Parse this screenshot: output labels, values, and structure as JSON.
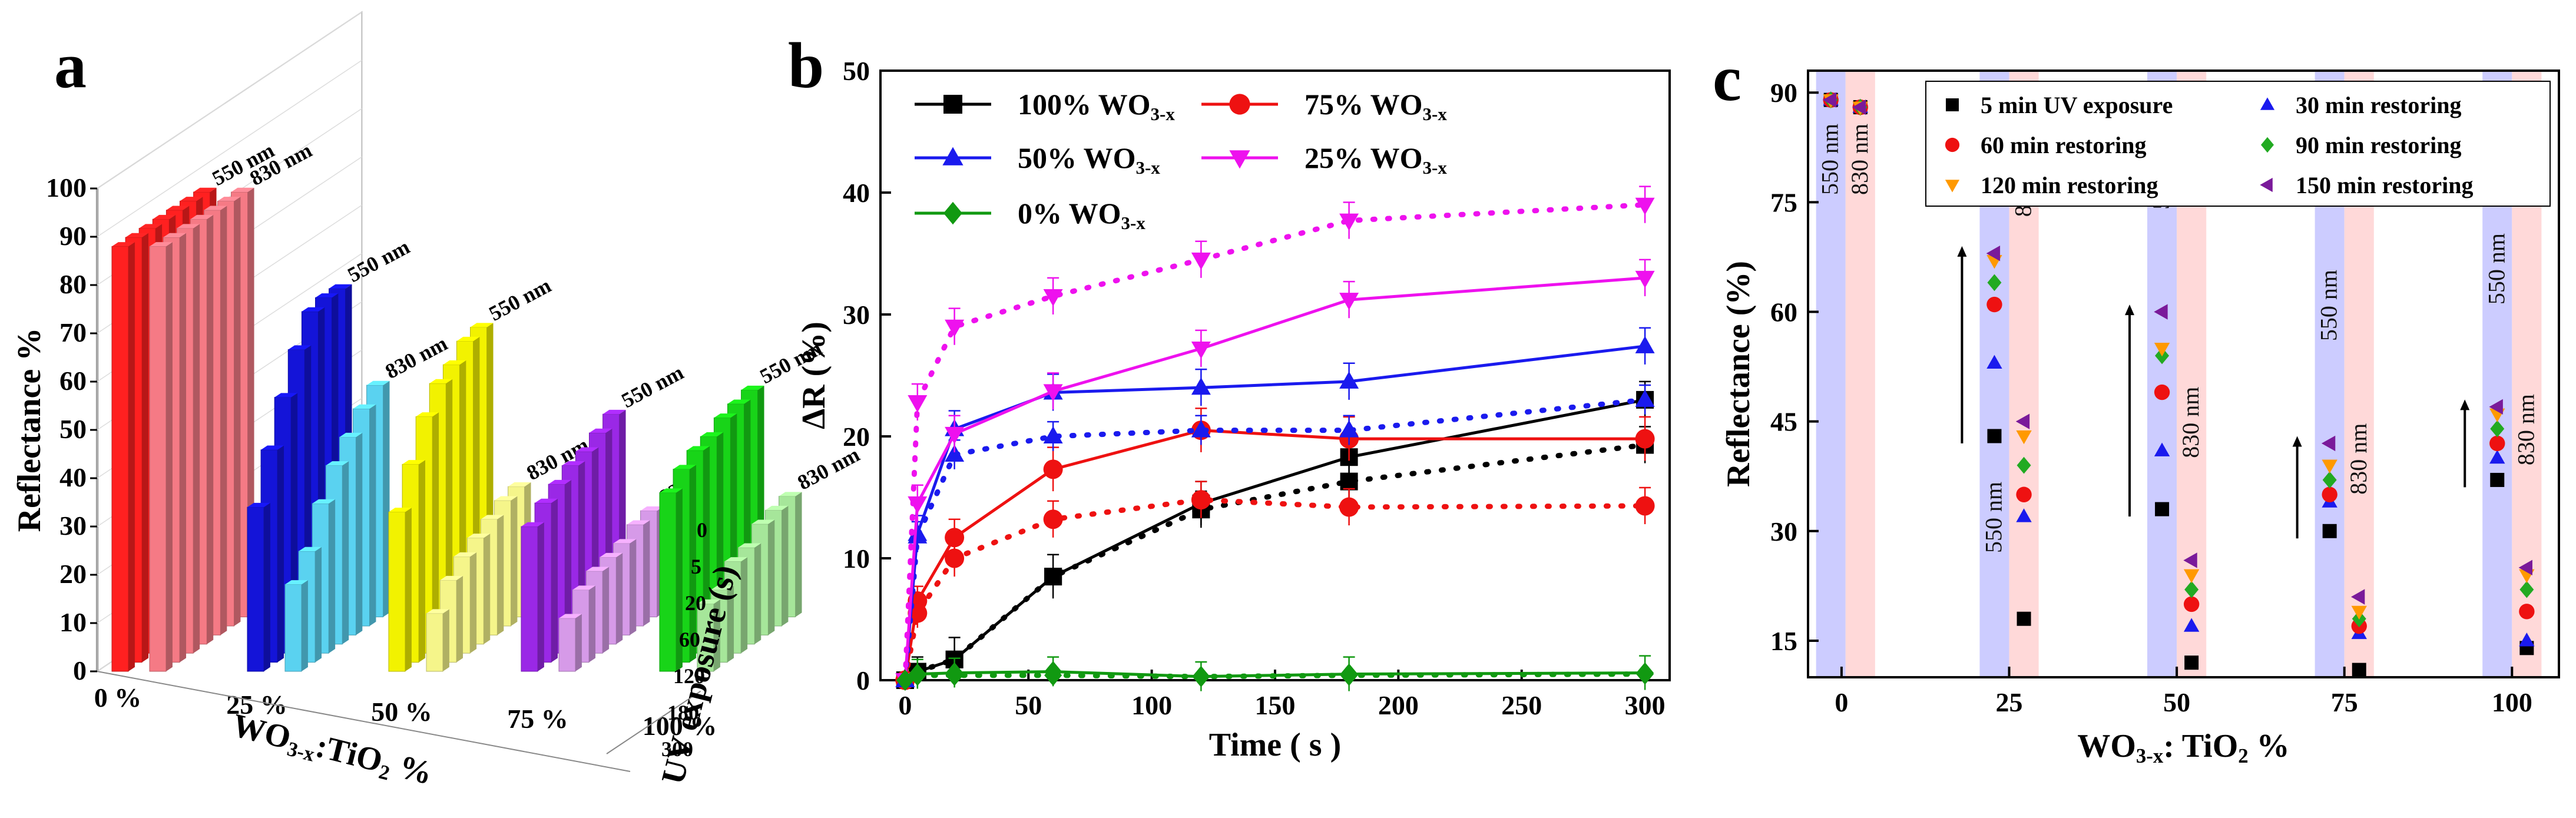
{
  "panels": [
    "a",
    "b",
    "c"
  ],
  "chart_data": [
    {
      "id": "a",
      "type": "bar",
      "title": "",
      "ylabel": "Reflectance %",
      "xlabel_main": "WO",
      "xlabel_sub": "3-x",
      "xlabel_tail": ":TiO",
      "xlabel_sub2": "2",
      "xlabel_end": " %",
      "zlabel": "UV exposure (s)",
      "ylim": [
        0,
        100
      ],
      "yticks": [
        "0",
        "10",
        "20",
        "30",
        "40",
        "50",
        "60",
        "70",
        "80",
        "90",
        "100"
      ],
      "groups": [
        "0 %",
        "25 %",
        "50 %",
        "75 %",
        "100 %"
      ],
      "exposure_ticks": [
        "0",
        "5",
        "20",
        "60",
        "120",
        "180",
        "300"
      ],
      "wavelength_labels": [
        "550 nm",
        "830 nm"
      ],
      "colors": {
        "0": [
          "#ff2020",
          "#f57a85"
        ],
        "25": [
          "#1414d8",
          "#5ad2f0"
        ],
        "50": [
          "#f2f200",
          "#f5f58a"
        ],
        "75": [
          "#9a28e6",
          "#d69ae8"
        ],
        "100": [
          "#18d418",
          "#a6e69a"
        ]
      },
      "series": [
        {
          "name": "0% 550 nm",
          "values": [
            88,
            88,
            88,
            88,
            88,
            88,
            88
          ]
        },
        {
          "name": "0% 830 nm",
          "values": [
            88,
            88,
            88,
            88,
            88,
            88,
            88
          ]
        },
        {
          "name": "25% 550 nm",
          "values": [
            34,
            44,
            53,
            61,
            67,
            68,
            68
          ]
        },
        {
          "name": "25% 830 nm",
          "values": [
            18,
            23,
            31,
            37,
            41,
            45,
            48
          ]
        },
        {
          "name": "50% 550 nm",
          "values": [
            33,
            41,
            49,
            54,
            56,
            59,
            60
          ]
        },
        {
          "name": "50% 830 nm",
          "values": [
            12,
            17,
            20,
            22,
            24,
            26,
            27
          ]
        },
        {
          "name": "75% 550 nm",
          "values": [
            30,
            33,
            35,
            37,
            38,
            40,
            42
          ]
        },
        {
          "name": "75% 830 nm",
          "values": [
            11,
            15,
            17,
            18,
            19,
            21,
            22
          ]
        },
        {
          "name": "100% 550 nm",
          "values": [
            37,
            40,
            42,
            43,
            45,
            46,
            47
          ]
        },
        {
          "name": "100% 830 nm",
          "values": [
            14,
            15,
            19,
            20,
            23,
            24,
            25
          ]
        }
      ]
    },
    {
      "id": "b",
      "type": "line",
      "xlabel": "Time ( s )",
      "ylabel": "ΔR (%)",
      "xlim": [
        -10,
        310
      ],
      "ylim": [
        0,
        50
      ],
      "xticks": [
        0,
        50,
        100,
        150,
        200,
        250,
        300
      ],
      "yticks": [
        0,
        10,
        20,
        30,
        40,
        50
      ],
      "x": [
        0,
        5,
        20,
        60,
        120,
        180,
        300
      ],
      "legend": [
        {
          "label": "100% WO",
          "sub": "3-x",
          "color": "#000000",
          "marker": "square"
        },
        {
          "label": "75% WO",
          "sub": "3-x",
          "color": "#ee1111",
          "marker": "circle"
        },
        {
          "label": "50% WO",
          "sub": "3-x",
          "color": "#1a1aee",
          "marker": "triangle-up"
        },
        {
          "label": "25% WO",
          "sub": "3-x",
          "color": "#ee11ee",
          "marker": "triangle-down"
        },
        {
          "label": "0% WO",
          "sub": "3-x",
          "color": "#119911",
          "marker": "diamond"
        }
      ],
      "series": [
        {
          "name": "100% WO3-x 550 nm",
          "color": "#000000",
          "marker": "square",
          "dash": false,
          "values": [
            0,
            0.7,
            1.7,
            8.5,
            14.5,
            18.3,
            23
          ],
          "err": [
            0.2,
            1.2,
            1.8,
            1.8,
            1.8,
            1.8,
            1.5
          ]
        },
        {
          "name": "100% WO3-x 830 nm",
          "color": "#000000",
          "marker": "square",
          "dash": true,
          "values": [
            0,
            0.7,
            1.7,
            8.5,
            14.0,
            16.3,
            19.3
          ],
          "err": [
            0.2,
            0,
            0,
            0,
            1.5,
            1.5,
            1.5
          ]
        },
        {
          "name": "75% WO3-x 550 nm",
          "color": "#ee1111",
          "marker": "circle",
          "dash": false,
          "values": [
            0,
            6.5,
            11.7,
            17.3,
            20.5,
            19.8,
            19.8
          ],
          "err": [
            0.2,
            1.2,
            1.5,
            1.8,
            1.8,
            1.8,
            1.8
          ]
        },
        {
          "name": "75% WO3-x 830 nm",
          "color": "#ee1111",
          "marker": "circle",
          "dash": true,
          "values": [
            0,
            5.5,
            10.0,
            13.2,
            14.8,
            14.2,
            14.3
          ],
          "err": [
            0.2,
            1.2,
            1.5,
            1.5,
            1.5,
            1.5,
            1.5
          ]
        },
        {
          "name": "50% WO3-x 550 nm",
          "color": "#1a1aee",
          "marker": "triangle-up",
          "dash": false,
          "values": [
            0,
            12.0,
            20.6,
            23.6,
            24.0,
            24.5,
            27.4
          ],
          "err": [
            0.2,
            1.5,
            1.5,
            1.5,
            1.5,
            1.5,
            1.5
          ]
        },
        {
          "name": "50% WO3-x 830 nm",
          "color": "#1a1aee",
          "marker": "triangle-up",
          "dash": true,
          "values": [
            0,
            11.8,
            18.5,
            20.0,
            20.5,
            20.5,
            23.0
          ],
          "err": [
            0.2,
            1.2,
            1.2,
            1.2,
            1.2,
            1.2,
            1.2
          ]
        },
        {
          "name": "25% WO3-x 550 nm",
          "color": "#ee11ee",
          "marker": "triangle-down",
          "dash": false,
          "values": [
            0,
            14.5,
            20.2,
            23.7,
            27.2,
            31.2,
            33.0
          ],
          "err": [
            0.2,
            1.5,
            1.5,
            1.5,
            1.5,
            1.5,
            1.5
          ]
        },
        {
          "name": "25% WO3-x 830 nm",
          "color": "#ee11ee",
          "marker": "triangle-down",
          "dash": true,
          "values": [
            0,
            22.8,
            29.0,
            31.5,
            34.5,
            37.7,
            39.0
          ],
          "err": [
            0.2,
            1.5,
            1.5,
            1.5,
            1.5,
            1.5,
            1.5
          ]
        },
        {
          "name": "0% WO3-x 550 nm",
          "color": "#119911",
          "marker": "diamond",
          "dash": false,
          "values": [
            0,
            0.5,
            0.6,
            0.7,
            0.3,
            0.5,
            0.6
          ],
          "err": [
            0.2,
            1.2,
            1.2,
            1.2,
            1.2,
            1.4,
            1.4
          ]
        },
        {
          "name": "0% WO3-x 830 nm",
          "color": "#119911",
          "marker": "diamond",
          "dash": true,
          "values": [
            0,
            0.4,
            0.4,
            0.4,
            0.3,
            0.4,
            0.5
          ],
          "err": [
            0,
            0,
            0,
            0,
            0,
            0,
            0
          ]
        }
      ]
    },
    {
      "id": "c",
      "type": "scatter",
      "xlabel_main": "WO",
      "xlabel_sub": "3-x",
      "xlabel_tail": ": TiO",
      "xlabel_sub2": "2",
      "xlabel_end": " %",
      "ylabel": "Reflectance (%)",
      "xlim": [
        -5,
        107
      ],
      "ylim": [
        10,
        93
      ],
      "xticks": [
        0,
        25,
        50,
        75,
        100
      ],
      "yticks": [
        15,
        30,
        45,
        60,
        75,
        90
      ],
      "wavelength_labels": [
        "550 nm",
        "830 nm"
      ],
      "band_colors": {
        "550": "#ccccff",
        "830": "#ffd9d9"
      },
      "legend": [
        {
          "label": "5 min UV exposure",
          "color": "#000000",
          "marker": "square"
        },
        {
          "label": "30 min restoring",
          "color": "#1a1aee",
          "marker": "triangle-up"
        },
        {
          "label": "60 min restoring",
          "color": "#ee1111",
          "marker": "circle"
        },
        {
          "label": "90 min restoring",
          "color": "#22aa22",
          "marker": "diamond"
        },
        {
          "label": "120 min restoring",
          "color": "#ff9900",
          "marker": "triangle-down"
        },
        {
          "label": "150 min restoring",
          "color": "#7a1a9a",
          "marker": "triangle-left"
        }
      ],
      "groups": [
        {
          "x": 0,
          "band550": [
            -3.8,
            0.6
          ],
          "band830": [
            0.6,
            5
          ],
          "p550": [
            89,
            89,
            89,
            89,
            89,
            89
          ],
          "p830": [
            88,
            88,
            88,
            88,
            88,
            88
          ]
        },
        {
          "x": 25,
          "band550": [
            20.6,
            25
          ],
          "band830": [
            25,
            29.4
          ],
          "p550": [
            43,
            53,
            61,
            64,
            67,
            68
          ],
          "p830": [
            18,
            32,
            35,
            39,
            43,
            45
          ]
        },
        {
          "x": 50,
          "band550": [
            45.6,
            50
          ],
          "band830": [
            50,
            54.4
          ],
          "p550": [
            33,
            41,
            49,
            54,
            55,
            60
          ],
          "p830": [
            12,
            17,
            20,
            22,
            24,
            26
          ]
        },
        {
          "x": 75,
          "band550": [
            70.6,
            75
          ],
          "band830": [
            75,
            79.4
          ],
          "p550": [
            30,
            34,
            35,
            37,
            39,
            42
          ],
          "p830": [
            11,
            16,
            17,
            18,
            19,
            21
          ]
        },
        {
          "x": 100,
          "band550": [
            95.6,
            100
          ],
          "band830": [
            100,
            104.4
          ],
          "p550": [
            37,
            40,
            42,
            44,
            46,
            47
          ],
          "p830": [
            14,
            15,
            19,
            22,
            24,
            25
          ]
        }
      ]
    }
  ]
}
